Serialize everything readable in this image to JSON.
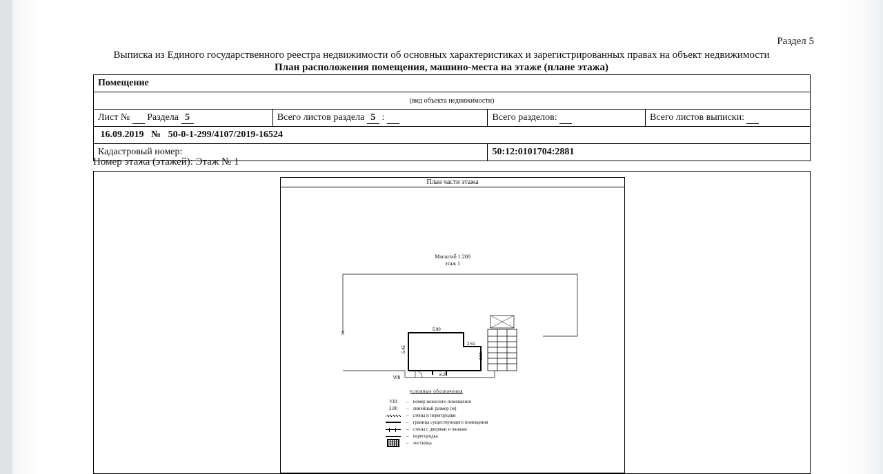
{
  "header": {
    "section_label": "Раздел 5",
    "title_line_1": "Выписка из Единого государственного реестра недвижимости об основных характеристиках и зарегистрированных правах на объект недвижимости",
    "title_line_2": "План расположения помещения, машино-места на этаже (плане этажа)"
  },
  "meta": {
    "object_label": "Помещение",
    "object_type_caption": "(вид объекта недвижимости)",
    "sheet_prefix": "Лист № ",
    "section_prefix": " Раздела ",
    "section_number": "5",
    "total_sheets_section_prefix": "Всего листов раздела ",
    "total_sheets_section_number": "5",
    "total_sheets_section_suffix": " : ",
    "total_sections_prefix": "Всего разделов: ",
    "total_extract_sheets_prefix": "Всего листов выписки: ",
    "date": "16.09.2019",
    "number_prefix": "№",
    "number": "50-0-1-299/4107/2019-16524",
    "cadastral_label": "Кадастровый номер:",
    "cadastral_number": "50:12:0101704:2881"
  },
  "plan": {
    "floor_label": "Номер этажа (этажей): Этаж № 1",
    "title": "План части этажа",
    "scale_line_1": "Масштаб 1:200",
    "scale_line_2": "этаж 1",
    "dimensions": {
      "top_width": "5.90",
      "notch_w": "2.51",
      "right_h": "3.89",
      "left_h": "5.45",
      "bottom_w": "8.24"
    },
    "room_label": "VIII",
    "legend": {
      "header": "условные обозначения",
      "items": [
        {
          "symbol": "VIII",
          "text": "номер нежилого помещения"
        },
        {
          "symbol": "2.80",
          "text": "линейный размер (м)"
        },
        {
          "symbol": "hatch",
          "text": "стены и перегородки"
        },
        {
          "symbol": "thick",
          "text": "граница существующего помещения"
        },
        {
          "symbol": "door",
          "text": "стены с дверями и окнами"
        },
        {
          "symbol": "thin",
          "text": "перегородка"
        },
        {
          "symbol": "stairs",
          "text": "лестница"
        }
      ]
    }
  },
  "colors": {
    "line": "#000000",
    "bg": "#ffffff"
  }
}
